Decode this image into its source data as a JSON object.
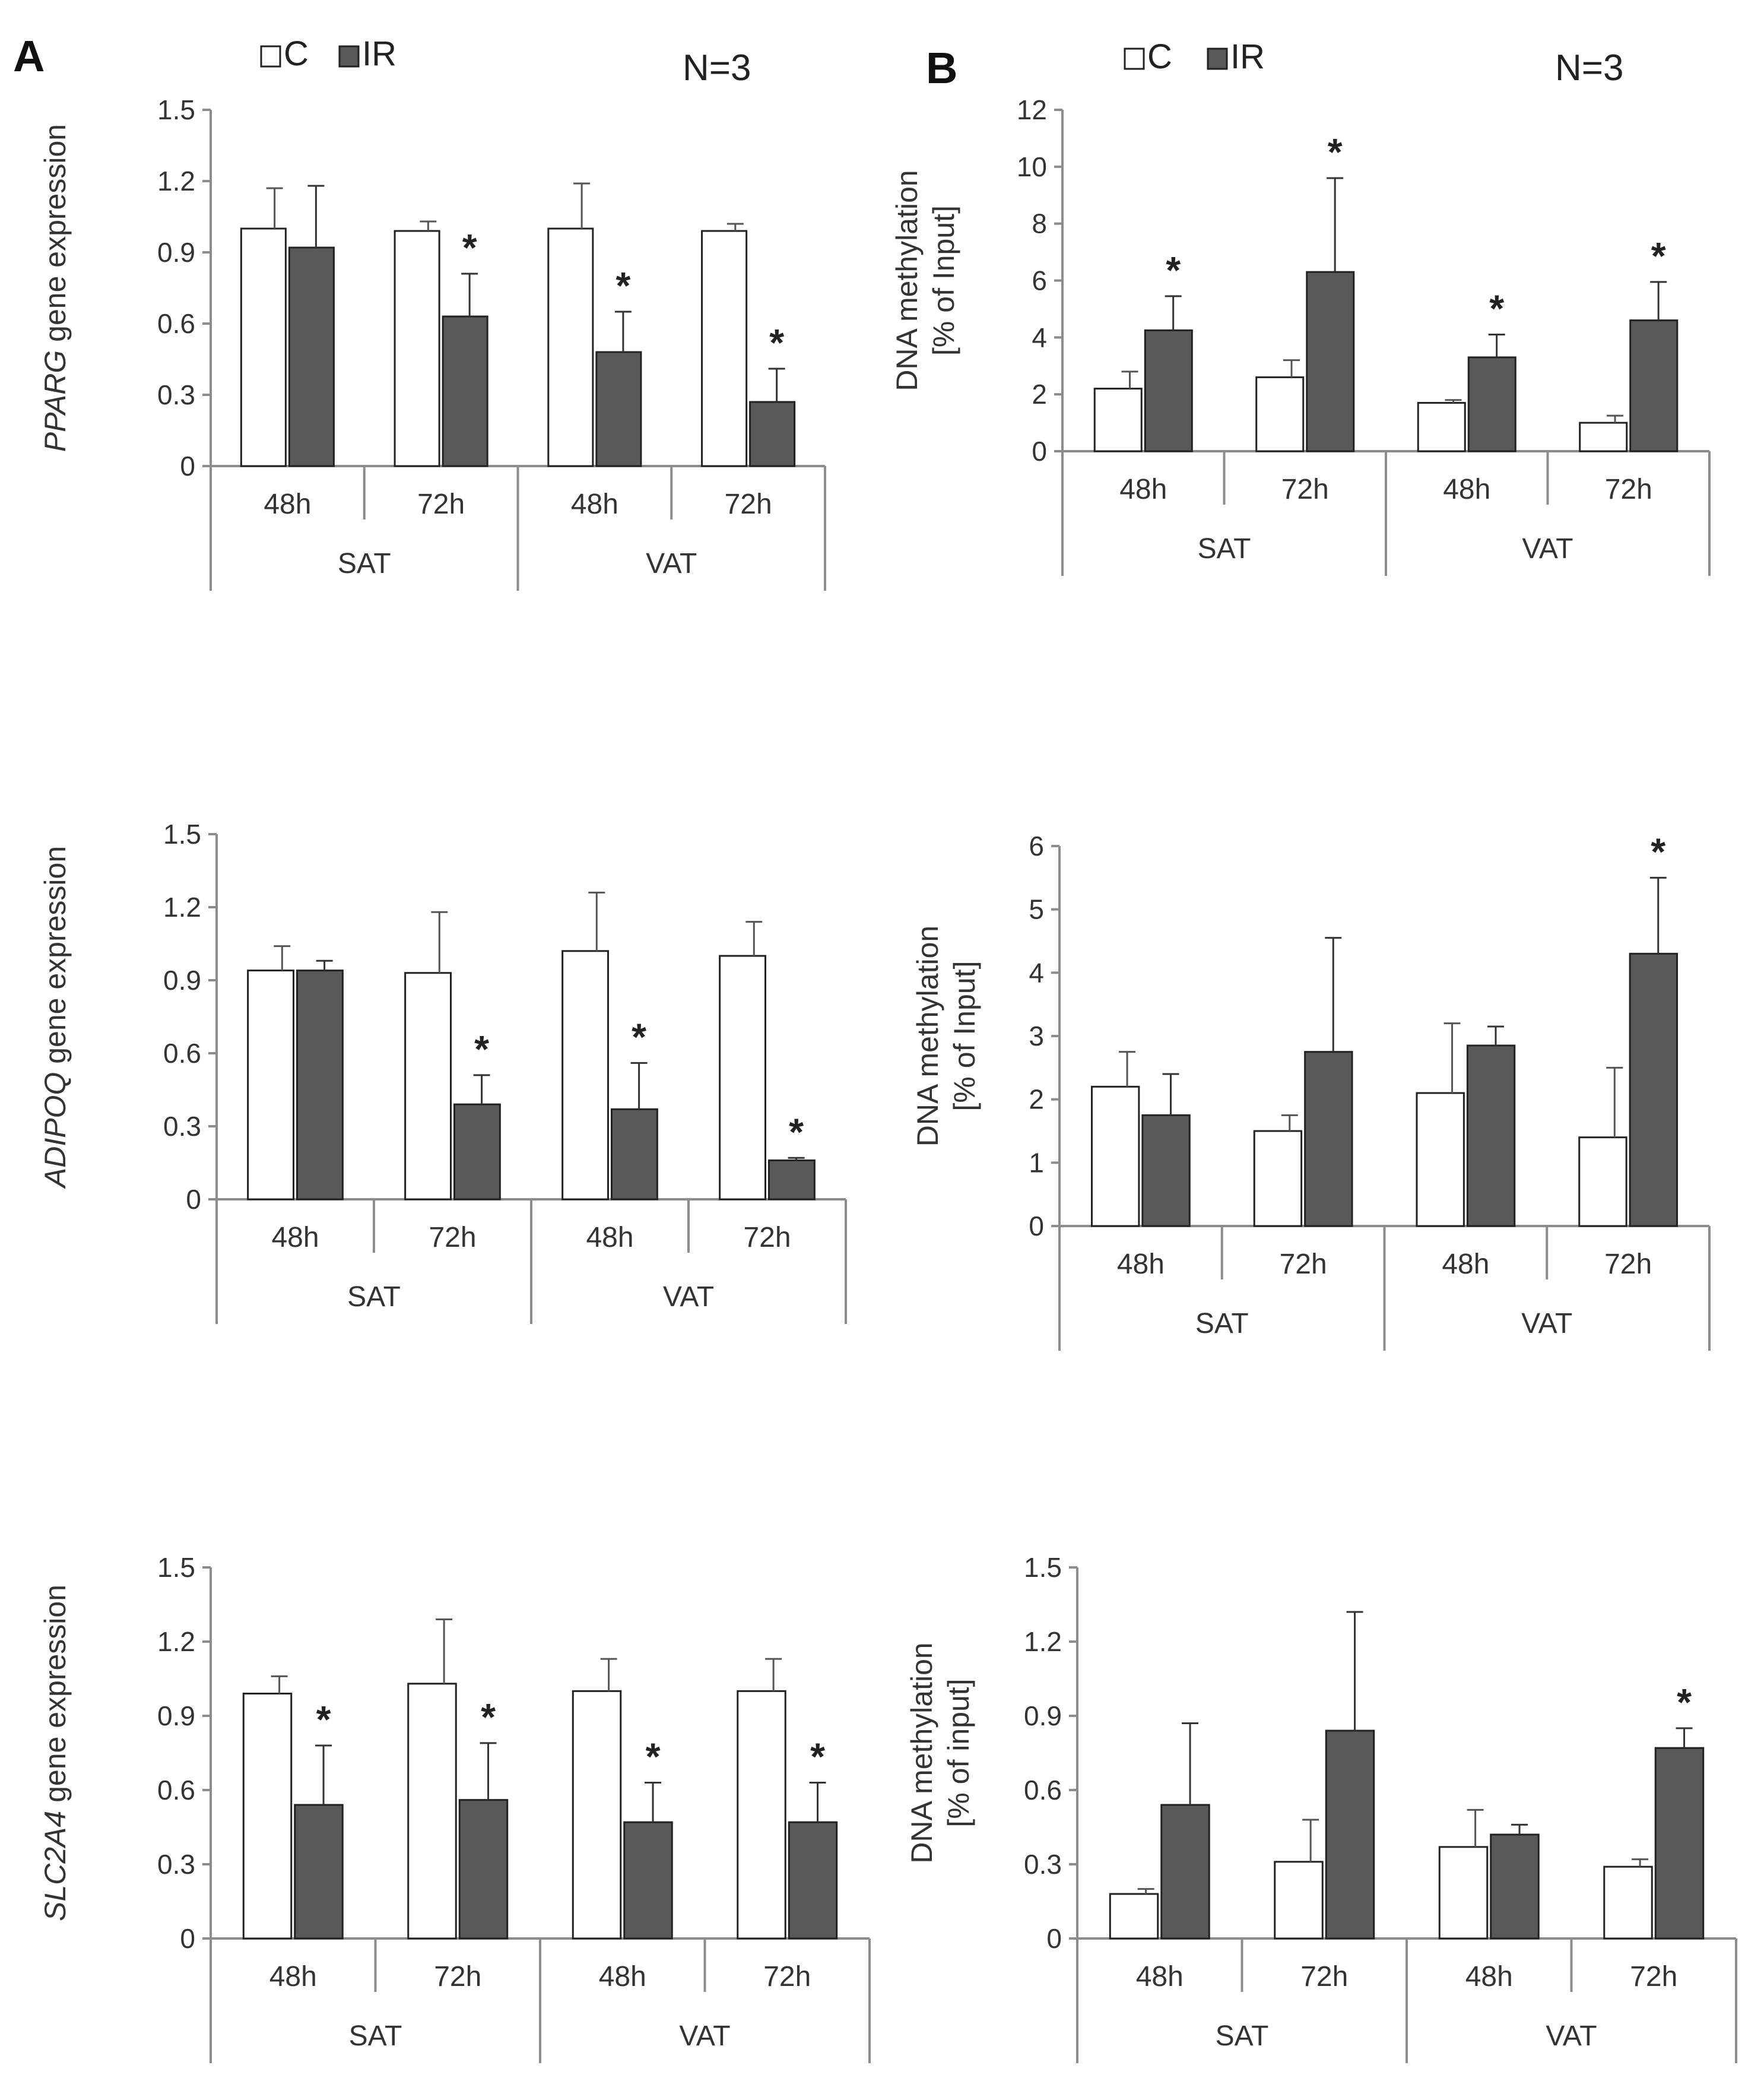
{
  "figure": {
    "panel_labels": [
      "A",
      "B"
    ],
    "n_label": "N=3",
    "legend": [
      {
        "name": "C",
        "color": "#ffffff"
      },
      {
        "name": "IR",
        "color": "#595959"
      }
    ],
    "colors": {
      "control": "#ffffff",
      "ir": "#595959",
      "axis": "#8c8c8c",
      "outline": "#222222"
    }
  },
  "chart_data": [
    {
      "id": "pparg-expression",
      "type": "bar",
      "ylabel_italic": "PPARG",
      "ylabel_rest": " gene expression",
      "ylabel_lines": [],
      "yticks": [
        "0",
        "0.3",
        "0.6",
        "0.9",
        "1.2",
        "1.5"
      ],
      "ylim": [
        0,
        1.5
      ],
      "timepoints": [
        "48h",
        "72h",
        "48h",
        "72h"
      ],
      "groups": [
        "SAT",
        "VAT"
      ],
      "series": [
        {
          "name": "C",
          "values": [
            1.0,
            0.99,
            1.0,
            0.99
          ],
          "errors": [
            0.17,
            0.04,
            0.19,
            0.03
          ]
        },
        {
          "name": "IR",
          "values": [
            0.92,
            0.63,
            0.48,
            0.27
          ],
          "errors": [
            0.26,
            0.18,
            0.17,
            0.14
          ]
        }
      ],
      "significance": [
        "",
        "*",
        "*",
        "*"
      ]
    },
    {
      "id": "pparg-methylation",
      "type": "bar",
      "ylabel_italic": "",
      "ylabel_rest": "",
      "ylabel_lines": [
        "DNA methylation",
        "[% of Input]"
      ],
      "yticks": [
        "0",
        "2",
        "4",
        "6",
        "8",
        "10",
        "12"
      ],
      "ylim": [
        0,
        12
      ],
      "timepoints": [
        "48h",
        "72h",
        "48h",
        "72h"
      ],
      "groups": [
        "SAT",
        "VAT"
      ],
      "series": [
        {
          "name": "C",
          "values": [
            2.2,
            2.6,
            1.7,
            1.0
          ],
          "errors": [
            0.6,
            0.6,
            0.1,
            0.25
          ]
        },
        {
          "name": "IR",
          "values": [
            4.25,
            6.3,
            3.3,
            4.6
          ],
          "errors": [
            1.2,
            3.3,
            0.8,
            1.35
          ]
        }
      ],
      "significance": [
        "*",
        "*",
        "*",
        "*"
      ]
    },
    {
      "id": "adipoq-expression",
      "type": "bar",
      "ylabel_italic": "ADIPOQ",
      "ylabel_rest": " gene expression",
      "ylabel_lines": [],
      "yticks": [
        "0",
        "0.3",
        "0.6",
        "0.9",
        "1.2",
        "1.5"
      ],
      "ylim": [
        0,
        1.5
      ],
      "timepoints": [
        "48h",
        "72h",
        "48h",
        "72h"
      ],
      "groups": [
        "SAT",
        "VAT"
      ],
      "series": [
        {
          "name": "C",
          "values": [
            0.94,
            0.93,
            1.02,
            1.0
          ],
          "errors": [
            0.1,
            0.25,
            0.24,
            0.14
          ]
        },
        {
          "name": "IR",
          "values": [
            0.94,
            0.39,
            0.37,
            0.16
          ],
          "errors": [
            0.04,
            0.12,
            0.19,
            0.01
          ]
        }
      ],
      "significance": [
        "",
        "*",
        "*",
        "*"
      ]
    },
    {
      "id": "adipoq-methylation",
      "type": "bar",
      "ylabel_italic": "",
      "ylabel_rest": "",
      "ylabel_lines": [
        "DNA methylation",
        "[% of Input]"
      ],
      "yticks": [
        "0",
        "1",
        "2",
        "3",
        "4",
        "5",
        "6"
      ],
      "ylim": [
        0,
        6
      ],
      "timepoints": [
        "48h",
        "72h",
        "48h",
        "72h"
      ],
      "groups": [
        "SAT",
        "VAT"
      ],
      "series": [
        {
          "name": "C",
          "values": [
            2.2,
            1.5,
            2.1,
            1.4
          ],
          "errors": [
            0.55,
            0.25,
            1.1,
            1.1
          ]
        },
        {
          "name": "IR",
          "values": [
            1.75,
            2.75,
            2.85,
            4.3
          ],
          "errors": [
            0.65,
            1.8,
            0.3,
            1.2
          ]
        }
      ],
      "significance": [
        "",
        "",
        "",
        "*"
      ]
    },
    {
      "id": "slc2a4-expression",
      "type": "bar",
      "ylabel_italic": "SLC2A4",
      "ylabel_rest": " gene expression",
      "ylabel_lines": [],
      "yticks": [
        "0",
        "0.3",
        "0.6",
        "0.9",
        "1.2",
        "1.5"
      ],
      "ylim": [
        0,
        1.5
      ],
      "timepoints": [
        "48h",
        "72h",
        "48h",
        "72h"
      ],
      "groups": [
        "SAT",
        "VAT"
      ],
      "series": [
        {
          "name": "C",
          "values": [
            0.99,
            1.03,
            1.0,
            1.0
          ],
          "errors": [
            0.07,
            0.26,
            0.13,
            0.13
          ]
        },
        {
          "name": "IR",
          "values": [
            0.54,
            0.56,
            0.47,
            0.47
          ],
          "errors": [
            0.24,
            0.23,
            0.16,
            0.16
          ]
        }
      ],
      "significance": [
        "*",
        "*",
        "*",
        "*"
      ]
    },
    {
      "id": "slc2a4-methylation",
      "type": "bar",
      "ylabel_italic": "",
      "ylabel_rest": "",
      "ylabel_lines": [
        "DNA methylation",
        "[% of input]"
      ],
      "yticks": [
        "0",
        "0.3",
        "0.6",
        "0.9",
        "1.2",
        "1.5"
      ],
      "ylim": [
        0,
        1.5
      ],
      "timepoints": [
        "48h",
        "72h",
        "48h",
        "72h"
      ],
      "groups": [
        "SAT",
        "VAT"
      ],
      "series": [
        {
          "name": "C",
          "values": [
            0.18,
            0.31,
            0.37,
            0.29
          ],
          "errors": [
            0.02,
            0.17,
            0.15,
            0.03
          ]
        },
        {
          "name": "IR",
          "values": [
            0.54,
            0.84,
            0.42,
            0.77
          ],
          "errors": [
            0.33,
            0.48,
            0.04,
            0.08
          ]
        }
      ],
      "significance": [
        "",
        "",
        "",
        "*"
      ]
    }
  ]
}
